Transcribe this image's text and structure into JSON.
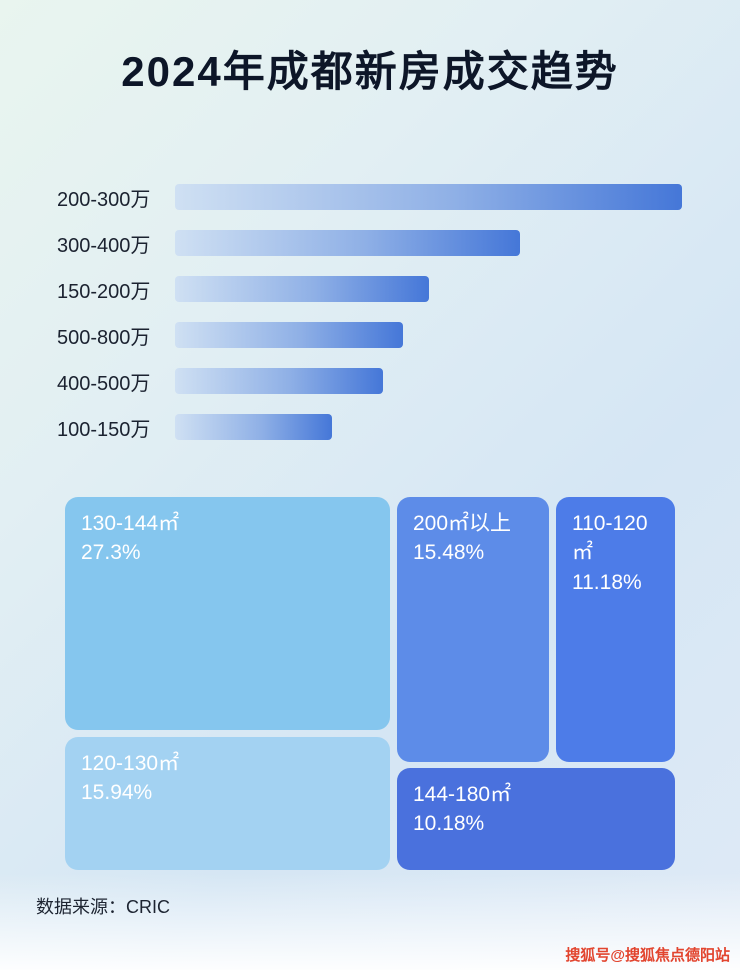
{
  "title": "2024年成都新房成交趋势",
  "chart_data": [
    {
      "type": "bar",
      "orientation": "horizontal",
      "title": "2024年成都新房成交趋势",
      "xlabel": "",
      "ylabel": "",
      "value_scale": "轴未标注数值，柱长为相对比例（最长柱=100）",
      "categories": [
        "200-300万",
        "300-400万",
        "150-200万",
        "500-800万",
        "400-500万",
        "100-150万"
      ],
      "values": [
        100,
        68,
        50,
        45,
        41,
        31
      ]
    },
    {
      "type": "treemap",
      "title": "",
      "items": [
        {
          "label": "130-144㎡",
          "percent": "27.3%",
          "value": 27.3,
          "color": "#85c6ee"
        },
        {
          "label": "200㎡以上",
          "percent": "15.48%",
          "value": 15.48,
          "color": "#5d8ce8"
        },
        {
          "label": "110-120㎡",
          "percent": "11.18%",
          "value": 11.18,
          "color": "#4d7ce8"
        },
        {
          "label": "120-130㎡",
          "percent": "15.94%",
          "value": 15.94,
          "color": "#a3d2f2"
        },
        {
          "label": "144-180㎡",
          "percent": "10.18%",
          "value": 10.18,
          "color": "#4a71dd"
        }
      ]
    }
  ],
  "footer": {
    "source": "数据来源：CRIC"
  },
  "watermark": "搜狐号@搜狐焦点德阳站",
  "colors": {
    "title_color": "#0d1628",
    "bar_gradient_start": "#cfe0f3",
    "bar_gradient_end": "#4577d8",
    "watermark_red": "#e2452f"
  }
}
